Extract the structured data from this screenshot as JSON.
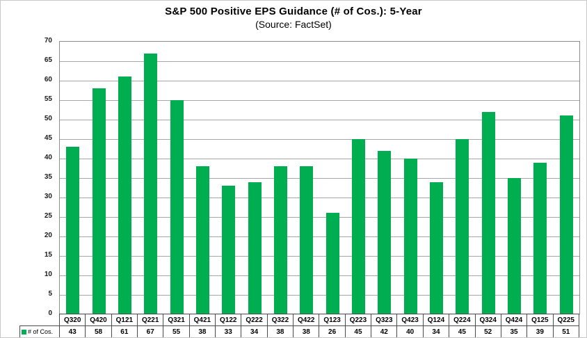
{
  "header": {
    "title": "S&P 500 Positive EPS Guidance (# of Cos.): 5-Year",
    "subtitle": "(Source: FactSet)"
  },
  "legend": {
    "label": "# of Cos."
  },
  "colors": {
    "bar_green": "#00AD50",
    "gridline_gray": "#a6a6a6",
    "plot_border_gray": "#8c8c8c",
    "table_border_gray": "#4a4a4a",
    "outer_border_gray": "#c9c9c9"
  },
  "chart_data": {
    "type": "bar",
    "title": "S&P 500 Positive EPS Guidance (# of Cos.): 5-Year",
    "subtitle": "(Source: FactSet)",
    "series_name": "# of Cos.",
    "categories": [
      "Q320",
      "Q420",
      "Q121",
      "Q221",
      "Q321",
      "Q421",
      "Q122",
      "Q222",
      "Q322",
      "Q422",
      "Q123",
      "Q223",
      "Q323",
      "Q423",
      "Q124",
      "Q224",
      "Q324",
      "Q424",
      "Q125",
      "Q225"
    ],
    "values": [
      43,
      58,
      61,
      67,
      55,
      38,
      33,
      34,
      38,
      38,
      26,
      45,
      42,
      40,
      34,
      45,
      52,
      35,
      39,
      51
    ],
    "xlabel": "",
    "ylabel": "",
    "ylim": [
      0,
      70
    ],
    "ytick_step": 5,
    "grid": true,
    "legend_position": "bottom-left",
    "data_table_shown": true
  }
}
